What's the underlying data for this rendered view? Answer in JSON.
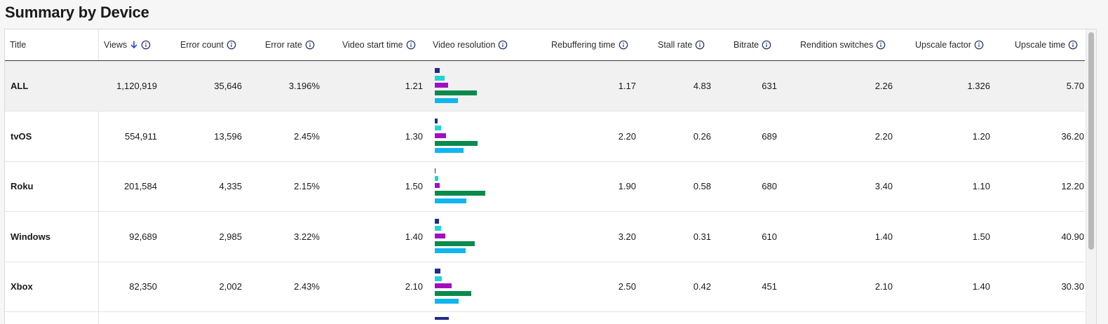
{
  "page_title": "Summary by Device",
  "colors": {
    "res_1": "#1f2a8a",
    "res_2": "#20d5d5",
    "res_3": "#a10fc0",
    "res_4": "#0a8a4d",
    "res_5": "#10b6f0",
    "sort_arrow": "#2c49c9",
    "highlight_row": "#f1f1f1"
  },
  "table": {
    "columns": [
      {
        "key": "title",
        "label": "Title"
      },
      {
        "key": "views",
        "label": "Views",
        "sorted": "desc",
        "sort_icon": "arrow-down-icon",
        "info_icon": "info-icon"
      },
      {
        "key": "error_count",
        "label": "Error count",
        "info_icon": "info-icon"
      },
      {
        "key": "error_rate",
        "label": "Error rate",
        "info_icon": "info-icon"
      },
      {
        "key": "video_start_time",
        "label": "Video start time",
        "info_icon": "info-icon"
      },
      {
        "key": "video_resolution",
        "label": "Video resolution",
        "info_icon": "info-icon"
      },
      {
        "key": "rebuffering_time",
        "label": "Rebuffering time",
        "info_icon": "info-icon"
      },
      {
        "key": "stall_rate",
        "label": "Stall rate",
        "info_icon": "info-icon"
      },
      {
        "key": "bitrate",
        "label": "Bitrate",
        "info_icon": "info-icon"
      },
      {
        "key": "rendition_switches",
        "label": "Rendition switches",
        "info_icon": "info-icon"
      },
      {
        "key": "upscale_factor",
        "label": "Upscale factor",
        "info_icon": "info-icon"
      },
      {
        "key": "upscale_time",
        "label": "Upscale time",
        "info_icon": "info-icon"
      }
    ],
    "rows": [
      {
        "title": "ALL",
        "views": "1,120,919",
        "error_count": "35,646",
        "error_rate": "3.196%",
        "video_start_time": "1.21",
        "resolution_bar_fractions": [
          0.1,
          0.2,
          0.27,
          0.83,
          0.46
        ],
        "rebuffering_time": "1.17",
        "stall_rate": "4.83",
        "bitrate": "631",
        "rendition_switches": "2.26",
        "upscale_factor": "1.326",
        "upscale_time": "5.70",
        "highlight": true
      },
      {
        "title": "tvOS",
        "views": "554,911",
        "error_count": "13,596",
        "error_rate": "2.45%",
        "video_start_time": "1.30",
        "resolution_bar_fractions": [
          0.06,
          0.12,
          0.22,
          0.85,
          0.57
        ],
        "rebuffering_time": "2.20",
        "stall_rate": "0.26",
        "bitrate": "689",
        "rendition_switches": "2.20",
        "upscale_factor": "1.20",
        "upscale_time": "36.20"
      },
      {
        "title": "Roku",
        "views": "201,584",
        "error_count": "4,335",
        "error_rate": "2.15%",
        "video_start_time": "1.50",
        "resolution_bar_fractions": [
          0.02,
          0.07,
          0.1,
          1.0,
          0.63
        ],
        "rebuffering_time": "1.90",
        "stall_rate": "0.58",
        "bitrate": "680",
        "rendition_switches": "3.40",
        "upscale_factor": "1.10",
        "upscale_time": "12.20"
      },
      {
        "title": "Windows",
        "views": "92,689",
        "error_count": "2,985",
        "error_rate": "3.22%",
        "video_start_time": "1.40",
        "resolution_bar_fractions": [
          0.09,
          0.12,
          0.21,
          0.79,
          0.61
        ],
        "rebuffering_time": "3.20",
        "stall_rate": "0.31",
        "bitrate": "610",
        "rendition_switches": "1.40",
        "upscale_factor": "1.50",
        "upscale_time": "40.90"
      },
      {
        "title": "Xbox",
        "views": "82,350",
        "error_count": "2,002",
        "error_rate": "2.43%",
        "video_start_time": "2.10",
        "resolution_bar_fractions": [
          0.11,
          0.14,
          0.33,
          0.72,
          0.47
        ],
        "rebuffering_time": "2.50",
        "stall_rate": "0.42",
        "bitrate": "451",
        "rendition_switches": "2.10",
        "upscale_factor": "1.40",
        "upscale_time": "30.30"
      }
    ]
  }
}
